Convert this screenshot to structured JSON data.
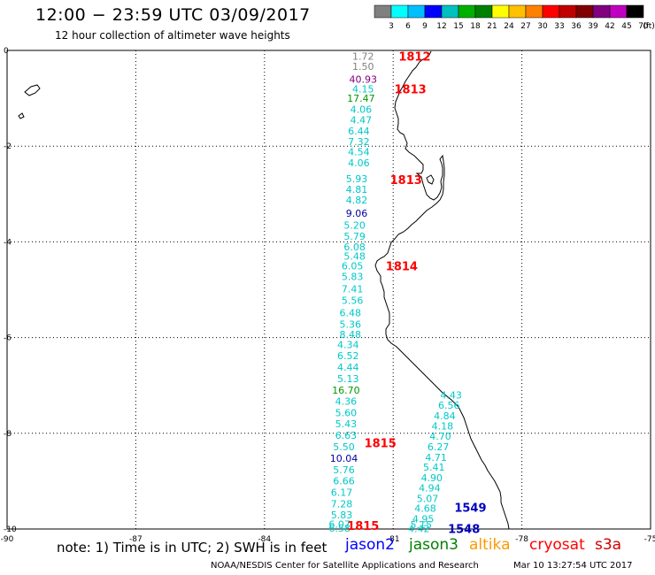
{
  "header": {
    "title": "12:00 − 23:59 UTC 03/09/2017",
    "subtitle": "12 hour collection of altimeter wave heights"
  },
  "colorbar": {
    "labels": [
      "3",
      "6",
      "9",
      "12",
      "15",
      "18",
      "21",
      "24",
      "27",
      "30",
      "33",
      "36",
      "39",
      "42",
      "45",
      "70",
      "(ft)"
    ],
    "colors": [
      "#808080",
      "#00ffff",
      "#00bfff",
      "#0000ff",
      "#00c0c0",
      "#00b000",
      "#008000",
      "#ffff00",
      "#ffc000",
      "#ff8000",
      "#ff0000",
      "#c00000",
      "#800000",
      "#800080",
      "#c000c0",
      "#000000"
    ]
  },
  "chart_data": {
    "type": "scatter",
    "title": "12:00 − 23:59 UTC 03/09/2017",
    "subtitle": "12 hour collection of altimeter wave heights",
    "x_ticks": [
      -90,
      -87,
      -84,
      -81,
      -78,
      -75
    ],
    "y_ticks": [
      0,
      -2,
      -4,
      -6,
      -8,
      -10
    ],
    "xlim": [
      -90,
      -75
    ],
    "ylim": [
      -10,
      0
    ],
    "grid": true,
    "units": "SWH in feet",
    "tracks": [
      {
        "labels": [
          {
            "text": "1812",
            "lon": -80.5,
            "lat": -0.12
          },
          {
            "text": "1813",
            "lon": -80.6,
            "lat": -0.8
          },
          {
            "text": "1813",
            "lon": -80.7,
            "lat": -2.7
          },
          {
            "text": "1814",
            "lon": -80.8,
            "lat": -4.5
          },
          {
            "text": "1815",
            "lon": -81.3,
            "lat": -8.2
          },
          {
            "text": "1815",
            "lon": -81.7,
            "lat": -9.93
          }
        ],
        "points": [
          {
            "lon": -81.7,
            "lat": -0.12,
            "swh": "1.72",
            "color": "#808080"
          },
          {
            "lon": -81.7,
            "lat": -0.33,
            "swh": "1.50",
            "color": "#808080"
          },
          {
            "lon": -81.7,
            "lat": -0.6,
            "swh": "40.93",
            "color": "#800080"
          },
          {
            "lon": -81.7,
            "lat": -0.8,
            "swh": "4.15",
            "color": "#00c8c8"
          },
          {
            "lon": -81.75,
            "lat": -1.0,
            "swh": "17.47",
            "color": "#009900"
          },
          {
            "lon": -81.75,
            "lat": -1.23,
            "swh": "4.06",
            "color": "#00c8c8"
          },
          {
            "lon": -81.75,
            "lat": -1.45,
            "swh": "4.47",
            "color": "#00c8c8"
          },
          {
            "lon": -81.8,
            "lat": -1.68,
            "swh": "6.44",
            "color": "#00c8c8"
          },
          {
            "lon": -81.8,
            "lat": -1.9,
            "swh": "7.32",
            "color": "#00c8c8"
          },
          {
            "lon": -81.8,
            "lat": -2.12,
            "swh": "4.54",
            "color": "#00c8c8"
          },
          {
            "lon": -81.8,
            "lat": -2.35,
            "swh": "4.06",
            "color": "#00c8c8"
          },
          {
            "lon": -81.85,
            "lat": -2.68,
            "swh": "5.93",
            "color": "#00c8c8"
          },
          {
            "lon": -81.85,
            "lat": -2.9,
            "swh": "4.81",
            "color": "#00c8c8"
          },
          {
            "lon": -81.85,
            "lat": -3.12,
            "swh": "4.82",
            "color": "#00c8c8"
          },
          {
            "lon": -81.85,
            "lat": -3.4,
            "swh": "9.06",
            "color": "#0000a0"
          },
          {
            "lon": -81.9,
            "lat": -3.65,
            "swh": "5.20",
            "color": "#00c8c8"
          },
          {
            "lon": -81.9,
            "lat": -3.88,
            "swh": "5.79",
            "color": "#00c8c8"
          },
          {
            "lon": -81.9,
            "lat": -4.1,
            "swh": "6.08",
            "color": "#00c8c8"
          },
          {
            "lon": -81.9,
            "lat": -4.3,
            "swh": "5.48",
            "color": "#00c8c8"
          },
          {
            "lon": -81.95,
            "lat": -4.5,
            "swh": "6.05",
            "color": "#00c8c8"
          },
          {
            "lon": -81.95,
            "lat": -4.72,
            "swh": "5.83",
            "color": "#00c8c8"
          },
          {
            "lon": -81.95,
            "lat": -4.98,
            "swh": "7.41",
            "color": "#00c8c8"
          },
          {
            "lon": -81.95,
            "lat": -5.22,
            "swh": "5.56",
            "color": "#00c8c8"
          },
          {
            "lon": -82.0,
            "lat": -5.48,
            "swh": "6.48",
            "color": "#00c8c8"
          },
          {
            "lon": -82.0,
            "lat": -5.72,
            "swh": "5.36",
            "color": "#00c8c8"
          },
          {
            "lon": -82.0,
            "lat": -5.93,
            "swh": "8.48",
            "color": "#00c8c8"
          },
          {
            "lon": -82.05,
            "lat": -6.15,
            "swh": "4.34",
            "color": "#00c8c8"
          },
          {
            "lon": -82.05,
            "lat": -6.38,
            "swh": "6.52",
            "color": "#00c8c8"
          },
          {
            "lon": -82.05,
            "lat": -6.62,
            "swh": "4.44",
            "color": "#00c8c8"
          },
          {
            "lon": -82.05,
            "lat": -6.86,
            "swh": "5.13",
            "color": "#00c8c8"
          },
          {
            "lon": -82.1,
            "lat": -7.1,
            "swh": "16.70",
            "color": "#009900"
          },
          {
            "lon": -82.1,
            "lat": -7.33,
            "swh": "4.36",
            "color": "#00c8c8"
          },
          {
            "lon": -82.1,
            "lat": -7.57,
            "swh": "5.60",
            "color": "#00c8c8"
          },
          {
            "lon": -82.1,
            "lat": -7.8,
            "swh": "5.43",
            "color": "#00c8c8"
          },
          {
            "lon": -82.1,
            "lat": -8.04,
            "swh": "6.63",
            "color": "#00c8c8"
          },
          {
            "lon": -82.15,
            "lat": -8.28,
            "swh": "5.50",
            "color": "#00c8c8"
          },
          {
            "lon": -82.15,
            "lat": -8.52,
            "swh": "10.04",
            "color": "#0000a0"
          },
          {
            "lon": -82.15,
            "lat": -8.76,
            "swh": "5.76",
            "color": "#00c8c8"
          },
          {
            "lon": -82.15,
            "lat": -8.99,
            "swh": "6.66",
            "color": "#00c8c8"
          },
          {
            "lon": -82.2,
            "lat": -9.23,
            "swh": "6.17",
            "color": "#00c8c8"
          },
          {
            "lon": -82.2,
            "lat": -9.47,
            "swh": "7.28",
            "color": "#00c8c8"
          },
          {
            "lon": -82.2,
            "lat": -9.7,
            "swh": "5.83",
            "color": "#00c8c8"
          },
          {
            "lon": -82.25,
            "lat": -9.9,
            "swh": "6.07",
            "color": "#00c8c8"
          },
          {
            "lon": -82.25,
            "lat": -9.98,
            "swh": "6.58",
            "color": "#00c8c8"
          }
        ]
      },
      {
        "labels": [
          {
            "text": "1549",
            "lon": -79.2,
            "lat": -9.55
          },
          {
            "text": "1548",
            "lon": -79.35,
            "lat": -9.99
          }
        ],
        "points": [
          {
            "lon": -79.65,
            "lat": -7.2,
            "swh": "4.43",
            "color": "#00c8c8"
          },
          {
            "lon": -79.7,
            "lat": -7.41,
            "swh": "6.56",
            "color": "#00c8c8"
          },
          {
            "lon": -79.8,
            "lat": -7.63,
            "swh": "4.84",
            "color": "#00c8c8"
          },
          {
            "lon": -79.85,
            "lat": -7.85,
            "swh": "4.18",
            "color": "#00c8c8"
          },
          {
            "lon": -79.9,
            "lat": -8.06,
            "swh": "4.70",
            "color": "#00c8c8"
          },
          {
            "lon": -79.95,
            "lat": -8.28,
            "swh": "6.27",
            "color": "#00c8c8"
          },
          {
            "lon": -80.0,
            "lat": -8.5,
            "swh": "4.71",
            "color": "#00c8c8"
          },
          {
            "lon": -80.05,
            "lat": -8.71,
            "swh": "5.41",
            "color": "#00c8c8"
          },
          {
            "lon": -80.1,
            "lat": -8.93,
            "swh": "4.90",
            "color": "#00c8c8"
          },
          {
            "lon": -80.15,
            "lat": -9.14,
            "swh": "4.94",
            "color": "#00c8c8"
          },
          {
            "lon": -80.2,
            "lat": -9.36,
            "swh": "5.07",
            "color": "#00c8c8"
          },
          {
            "lon": -80.25,
            "lat": -9.57,
            "swh": "4.68",
            "color": "#00c8c8"
          },
          {
            "lon": -80.3,
            "lat": -9.79,
            "swh": "4.95",
            "color": "#00c8c8"
          },
          {
            "lon": -80.35,
            "lat": -9.91,
            "swh": "5.15",
            "color": "#00c8c8"
          },
          {
            "lon": -80.4,
            "lat": -9.99,
            "swh": "4.42",
            "color": "#00c8c8"
          }
        ]
      }
    ]
  },
  "note": {
    "text": "note:  1) Time is in UTC; 2) SWH is in feet"
  },
  "legend": [
    {
      "name": "jason2",
      "color": "#0000ff"
    },
    {
      "name": "jason3",
      "color": "#008000"
    },
    {
      "name": "altika",
      "color": "#ff9900"
    },
    {
      "name": "cryosat",
      "color": "#ff0000"
    },
    {
      "name": "s3a",
      "color": "#cc0000"
    }
  ],
  "footer": {
    "center": "NOAA/NESDIS Center for Satellite Applications and Research",
    "timestamp": "Mar 10 13:27:54 UTC 2017"
  }
}
